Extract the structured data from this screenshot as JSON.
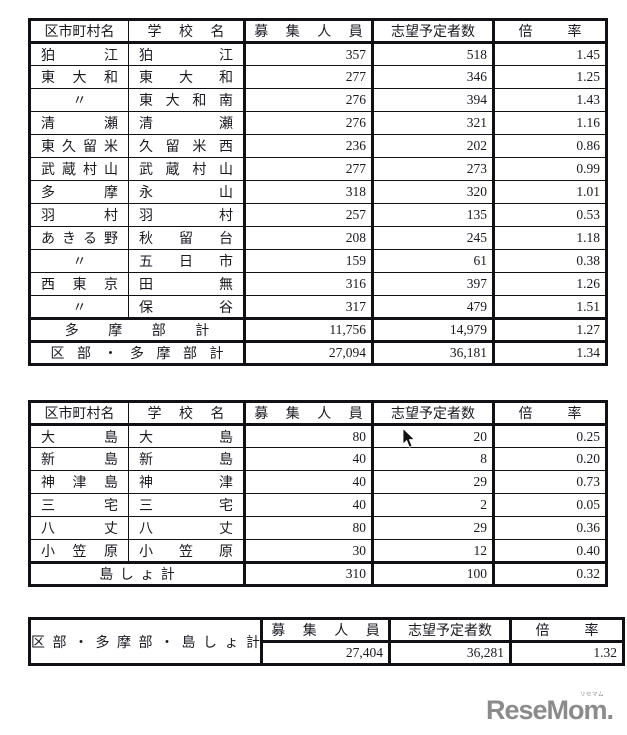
{
  "colors": {
    "text": "#1a1a20",
    "border": "#101015",
    "logo_gray": "#8b8b8b",
    "background": "#ffffff"
  },
  "headers": {
    "city": "区市町村名",
    "school": "学 校 名",
    "capacity": "募 集 人 員",
    "applicants": "志望予定者数",
    "ratio": "倍  率"
  },
  "mainland": {
    "rows": [
      {
        "city": "狛江",
        "school": "狛江",
        "capacity": "357",
        "applicants": "518",
        "ratio": "1.45"
      },
      {
        "city": "東大和",
        "school": "東大和",
        "capacity": "277",
        "applicants": "346",
        "ratio": "1.25"
      },
      {
        "city": "〃",
        "school": "東大和南",
        "capacity": "276",
        "applicants": "394",
        "ratio": "1.43"
      },
      {
        "city": "清瀬",
        "school": "清瀬",
        "capacity": "276",
        "applicants": "321",
        "ratio": "1.16"
      },
      {
        "city": "東久留米",
        "school": "久留米西",
        "capacity": "236",
        "applicants": "202",
        "ratio": "0.86"
      },
      {
        "city": "武蔵村山",
        "school": "武蔵村山",
        "capacity": "277",
        "applicants": "273",
        "ratio": "0.99"
      },
      {
        "city": "多摩",
        "school": "永山",
        "capacity": "318",
        "applicants": "320",
        "ratio": "1.01"
      },
      {
        "city": "羽村",
        "school": "羽村",
        "capacity": "257",
        "applicants": "135",
        "ratio": "0.53"
      },
      {
        "city": "あきる野",
        "school": "秋留台",
        "capacity": "208",
        "applicants": "245",
        "ratio": "1.18"
      },
      {
        "city": "〃",
        "school": "五日市",
        "capacity": "159",
        "applicants": "61",
        "ratio": "0.38"
      },
      {
        "city": "西東京",
        "school": "田無",
        "capacity": "316",
        "applicants": "397",
        "ratio": "1.26"
      },
      {
        "city": "〃",
        "school": "保谷",
        "capacity": "317",
        "applicants": "479",
        "ratio": "1.51"
      }
    ],
    "summary_rows": [
      {
        "label": "多 摩 部 計",
        "capacity": "11,756",
        "applicants": "14,979",
        "ratio": "1.27"
      },
      {
        "label": "区 部 ・ 多 摩 部 計",
        "capacity": "27,094",
        "applicants": "36,181",
        "ratio": "1.34"
      }
    ]
  },
  "islands": {
    "rows": [
      {
        "city": "大島",
        "school": "大島",
        "capacity": "80",
        "applicants": "20",
        "ratio": "0.25"
      },
      {
        "city": "新島",
        "school": "新島",
        "capacity": "40",
        "applicants": "8",
        "ratio": "0.20"
      },
      {
        "city": "神津島",
        "school": "神津",
        "capacity": "40",
        "applicants": "29",
        "ratio": "0.73"
      },
      {
        "city": "三宅",
        "school": "三宅",
        "capacity": "40",
        "applicants": "2",
        "ratio": "0.05"
      },
      {
        "city": "八丈",
        "school": "八丈",
        "capacity": "80",
        "applicants": "29",
        "ratio": "0.36"
      },
      {
        "city": "小笠原",
        "school": "小笠原",
        "capacity": "30",
        "applicants": "12",
        "ratio": "0.40"
      }
    ],
    "summary_rows": [
      {
        "label": "島 し ょ 計",
        "capacity": "310",
        "applicants": "100",
        "ratio": "0.32"
      }
    ]
  },
  "grand_total": {
    "label": "区 部 ・ 多 摩 部 ・ 島 し ょ 計",
    "values": {
      "capacity": "27,404",
      "applicants": "36,281",
      "ratio": "1.32"
    }
  },
  "logo": {
    "text": "ReseMom.",
    "ruby": "リセマム"
  }
}
